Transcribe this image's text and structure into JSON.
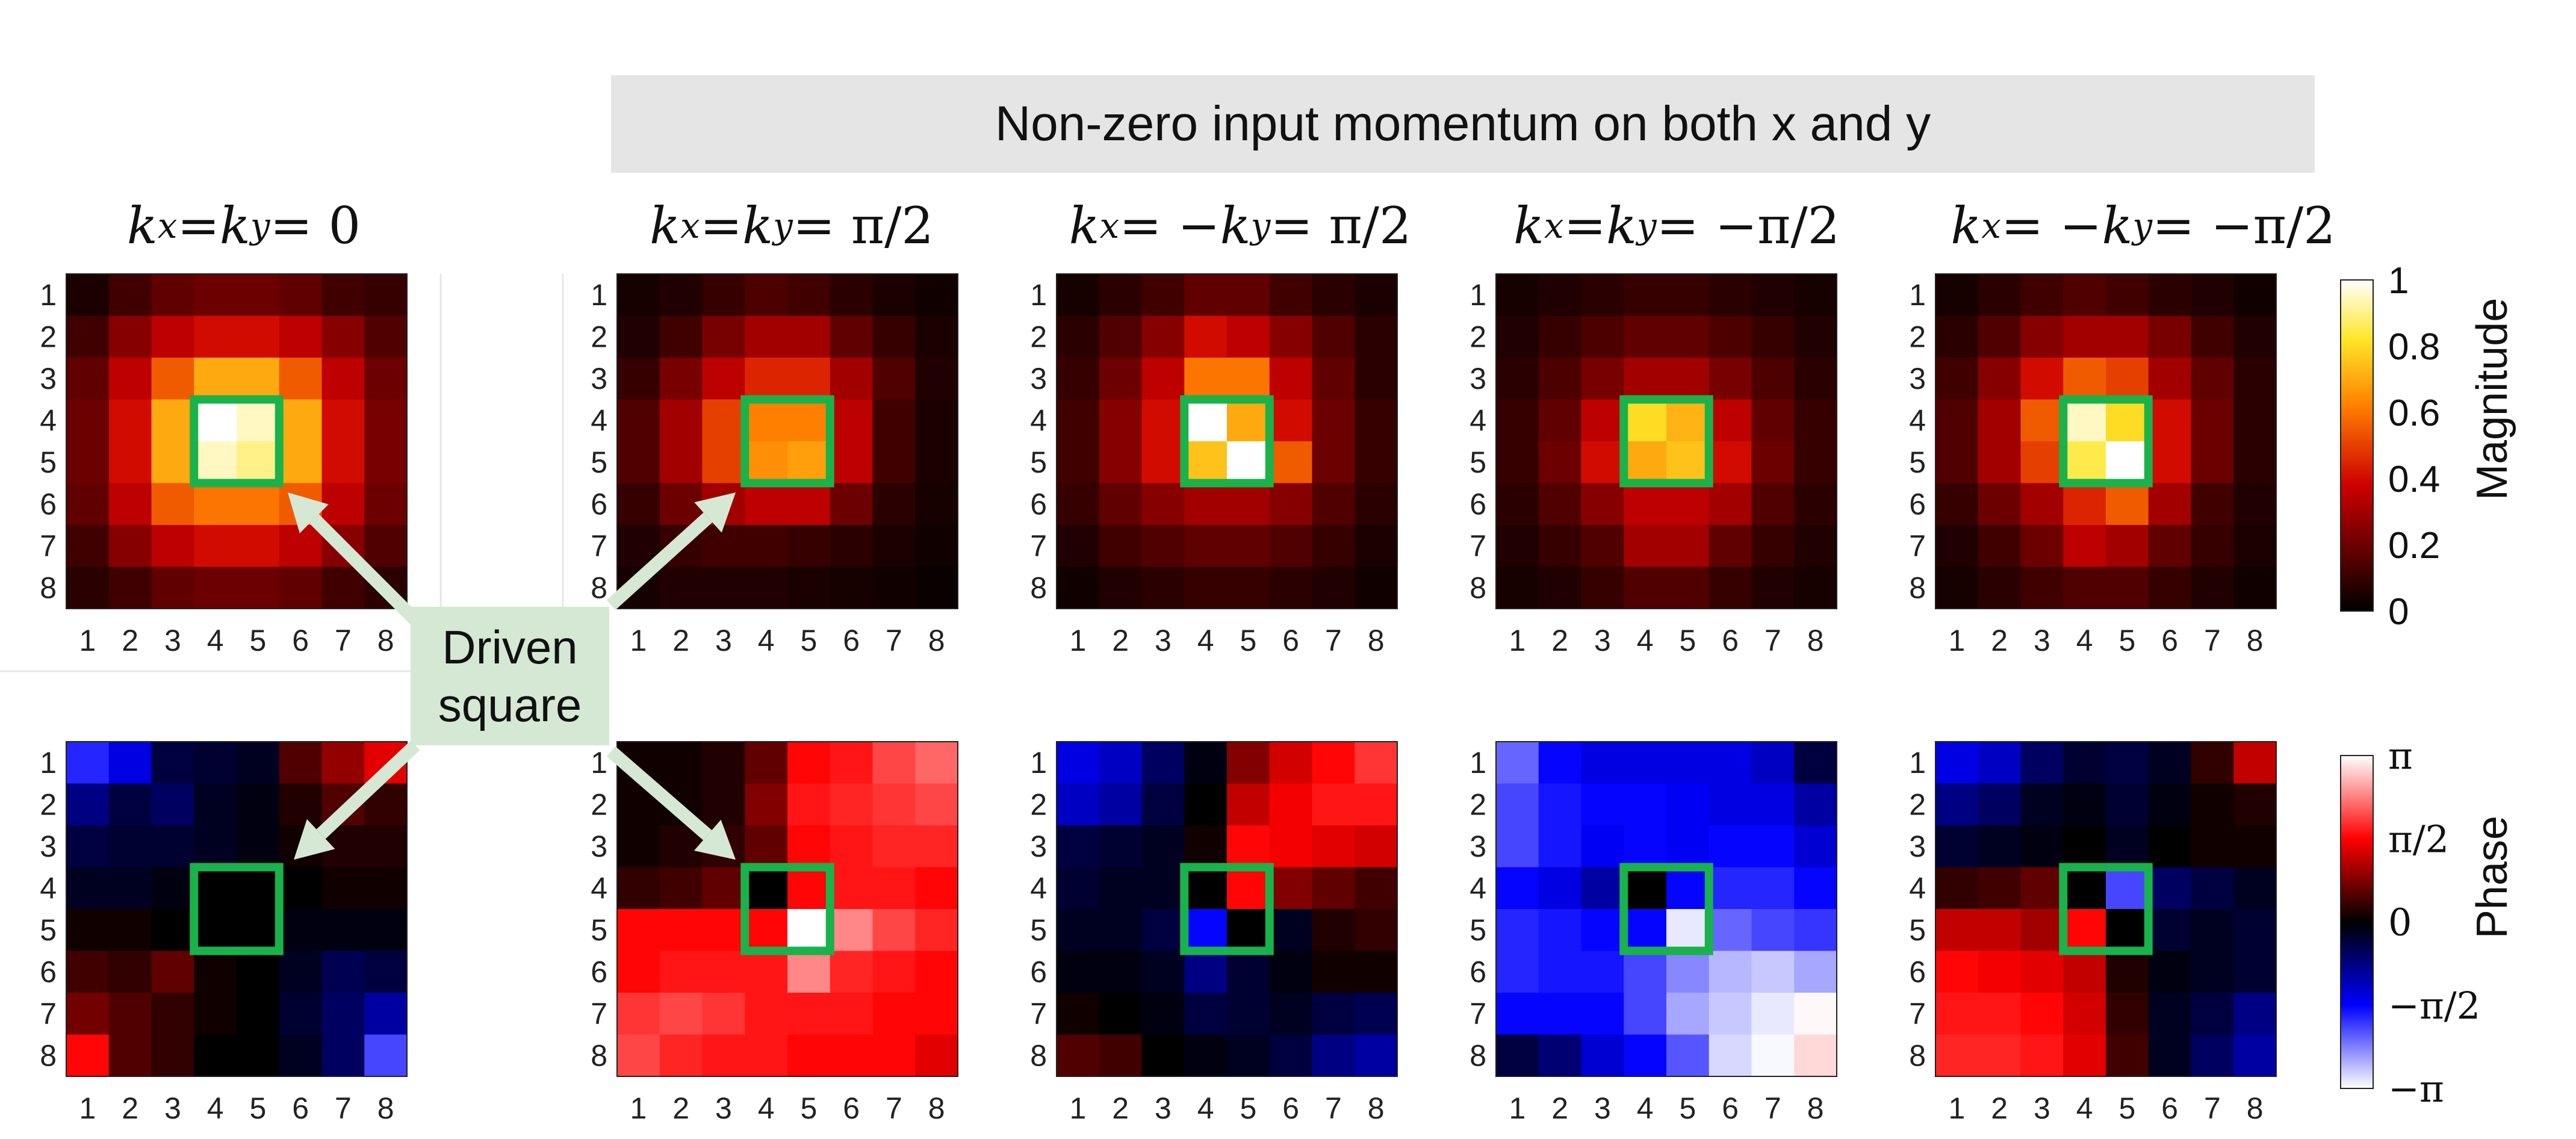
{
  "banner": {
    "text": "Non-zero input momentum on both x and y"
  },
  "callout": {
    "line1": "Driven",
    "line2": "square"
  },
  "titles": [
    {
      "lhs": "k",
      "sub1": "x",
      "op1": " = ",
      "mid": "k",
      "sub2": "y",
      "rhs": " = 0"
    },
    {
      "lhs": "k",
      "sub1": "x",
      "op1": " = ",
      "mid": "k",
      "sub2": "y",
      "rhs": " = π/2"
    },
    {
      "lhs": "k",
      "sub1": "x",
      "op1": " = −",
      "mid": "k",
      "sub2": "y",
      "rhs": " = π/2"
    },
    {
      "lhs": "k",
      "sub1": "x",
      "op1": " = ",
      "mid": "k",
      "sub2": "y",
      "rhs": " = −π/2"
    },
    {
      "lhs": "k",
      "sub1": "x",
      "op1": " = −",
      "mid": "k",
      "sub2": "y",
      "rhs": " = −π/2"
    }
  ],
  "colorbars": {
    "magnitude": {
      "label": "Magnitude",
      "ticks": [
        "0",
        "0.2",
        "0.4",
        "0.6",
        "0.8",
        "1"
      ]
    },
    "phase": {
      "label": "Phase",
      "ticks": [
        "−π",
        "−π/2",
        "0",
        "π/2",
        "π"
      ]
    }
  },
  "chart_data": {
    "type": "heatmap",
    "x_ticks": [
      "1",
      "2",
      "3",
      "4",
      "5",
      "6",
      "7",
      "8"
    ],
    "y_ticks": [
      "1",
      "2",
      "3",
      "4",
      "5",
      "6",
      "7",
      "8"
    ],
    "driven_square": {
      "rows": [
        4,
        5
      ],
      "cols": [
        4,
        5
      ]
    },
    "magnitude_range": [
      0,
      1
    ],
    "phase_range": [
      -3.1416,
      3.1416
    ],
    "panels": [
      {
        "title_index": 0,
        "magnitude": [
          [
            0.05,
            0.12,
            0.18,
            0.2,
            0.2,
            0.18,
            0.12,
            0.1
          ],
          [
            0.12,
            0.25,
            0.35,
            0.4,
            0.4,
            0.35,
            0.25,
            0.15
          ],
          [
            0.18,
            0.35,
            0.55,
            0.7,
            0.7,
            0.55,
            0.35,
            0.2
          ],
          [
            0.2,
            0.4,
            0.7,
            1.0,
            0.95,
            0.7,
            0.4,
            0.22
          ],
          [
            0.2,
            0.4,
            0.7,
            0.95,
            0.9,
            0.7,
            0.4,
            0.22
          ],
          [
            0.18,
            0.35,
            0.55,
            0.6,
            0.6,
            0.55,
            0.35,
            0.2
          ],
          [
            0.12,
            0.25,
            0.35,
            0.4,
            0.4,
            0.35,
            0.25,
            0.15
          ],
          [
            0.08,
            0.12,
            0.18,
            0.2,
            0.2,
            0.18,
            0.12,
            0.08
          ]
        ],
        "phase": [
          [
            -1.8,
            -1.4,
            -0.4,
            -0.3,
            -0.2,
            0.5,
            0.9,
            1.4
          ],
          [
            -0.8,
            -0.4,
            -0.6,
            -0.2,
            -0.1,
            0.2,
            0.5,
            0.3
          ],
          [
            -0.4,
            -0.3,
            -0.3,
            -0.2,
            -0.1,
            0.1,
            0.2,
            0.2
          ],
          [
            -0.2,
            -0.2,
            -0.1,
            0.0,
            0.0,
            0.0,
            0.1,
            0.1
          ],
          [
            0.1,
            0.1,
            0.0,
            0.0,
            0.0,
            -0.1,
            -0.1,
            -0.1
          ],
          [
            0.4,
            0.3,
            0.6,
            0.1,
            0.0,
            -0.2,
            -0.5,
            -0.4
          ],
          [
            0.7,
            0.5,
            0.3,
            0.1,
            0.0,
            -0.3,
            -0.6,
            -1.0
          ],
          [
            1.6,
            0.5,
            0.3,
            0.0,
            0.0,
            -0.2,
            -0.6,
            -2.0
          ]
        ]
      },
      {
        "title_index": 1,
        "magnitude": [
          [
            0.04,
            0.06,
            0.1,
            0.14,
            0.12,
            0.08,
            0.05,
            0.03
          ],
          [
            0.06,
            0.12,
            0.22,
            0.3,
            0.3,
            0.18,
            0.1,
            0.05
          ],
          [
            0.1,
            0.22,
            0.35,
            0.45,
            0.45,
            0.3,
            0.15,
            0.06
          ],
          [
            0.15,
            0.3,
            0.5,
            0.62,
            0.62,
            0.35,
            0.12,
            0.05
          ],
          [
            0.15,
            0.3,
            0.5,
            0.65,
            0.68,
            0.35,
            0.12,
            0.05
          ],
          [
            0.1,
            0.2,
            0.3,
            0.35,
            0.35,
            0.2,
            0.08,
            0.04
          ],
          [
            0.06,
            0.1,
            0.12,
            0.12,
            0.1,
            0.08,
            0.05,
            0.03
          ],
          [
            0.04,
            0.06,
            0.06,
            0.06,
            0.05,
            0.04,
            0.03,
            0.02
          ]
        ],
        "phase": [
          [
            0.1,
            0.1,
            0.2,
            0.6,
            1.6,
            1.7,
            2.0,
            2.2
          ],
          [
            0.1,
            0.1,
            0.2,
            0.8,
            1.7,
            1.8,
            1.9,
            2.0
          ],
          [
            0.1,
            0.2,
            0.3,
            0.6,
            1.6,
            1.7,
            1.8,
            1.8
          ],
          [
            0.3,
            0.4,
            0.6,
            0.0,
            1.6,
            1.7,
            1.7,
            1.6
          ],
          [
            1.6,
            1.6,
            1.6,
            1.6,
            3.14,
            2.4,
            2.0,
            1.8
          ],
          [
            1.6,
            1.7,
            1.7,
            1.7,
            2.4,
            1.8,
            1.7,
            1.6
          ],
          [
            1.9,
            2.0,
            1.9,
            1.7,
            1.7,
            1.7,
            1.6,
            1.6
          ],
          [
            2.0,
            1.8,
            1.7,
            1.7,
            1.6,
            1.6,
            1.6,
            1.4
          ]
        ]
      },
      {
        "title_index": 2,
        "magnitude": [
          [
            0.04,
            0.08,
            0.12,
            0.18,
            0.18,
            0.12,
            0.08,
            0.05
          ],
          [
            0.08,
            0.15,
            0.25,
            0.4,
            0.35,
            0.25,
            0.15,
            0.08
          ],
          [
            0.1,
            0.2,
            0.35,
            0.6,
            0.6,
            0.35,
            0.18,
            0.08
          ],
          [
            0.12,
            0.25,
            0.4,
            1.0,
            0.7,
            0.4,
            0.2,
            0.1
          ],
          [
            0.12,
            0.25,
            0.4,
            0.75,
            1.0,
            0.55,
            0.2,
            0.1
          ],
          [
            0.1,
            0.18,
            0.25,
            0.3,
            0.3,
            0.25,
            0.15,
            0.08
          ],
          [
            0.06,
            0.12,
            0.15,
            0.18,
            0.18,
            0.15,
            0.1,
            0.05
          ],
          [
            0.03,
            0.06,
            0.08,
            0.1,
            0.1,
            0.08,
            0.06,
            0.03
          ]
        ],
        "phase": [
          [
            -1.4,
            -1.2,
            -0.6,
            -0.1,
            0.8,
            1.3,
            1.6,
            1.9
          ],
          [
            -1.2,
            -1.0,
            -0.4,
            0.0,
            1.2,
            1.5,
            1.7,
            1.7
          ],
          [
            -0.4,
            -0.3,
            -0.2,
            0.1,
            1.6,
            1.5,
            1.4,
            1.3
          ],
          [
            -0.3,
            -0.2,
            -0.2,
            0.0,
            1.6,
            0.8,
            0.6,
            0.4
          ],
          [
            -0.2,
            -0.2,
            -0.4,
            -1.6,
            0.0,
            -0.2,
            0.2,
            0.3
          ],
          [
            -0.1,
            -0.1,
            -0.2,
            -0.8,
            -0.3,
            -0.1,
            0.1,
            0.1
          ],
          [
            0.1,
            0.0,
            -0.1,
            -0.4,
            -0.3,
            -0.2,
            -0.4,
            -0.5
          ],
          [
            0.5,
            0.4,
            0.0,
            -0.1,
            -0.2,
            -0.4,
            -0.8,
            -1.0
          ]
        ]
      },
      {
        "title_index": 3,
        "magnitude": [
          [
            0.04,
            0.06,
            0.08,
            0.1,
            0.1,
            0.08,
            0.06,
            0.04
          ],
          [
            0.06,
            0.1,
            0.14,
            0.18,
            0.18,
            0.14,
            0.1,
            0.06
          ],
          [
            0.08,
            0.14,
            0.22,
            0.3,
            0.3,
            0.22,
            0.14,
            0.08
          ],
          [
            0.1,
            0.18,
            0.35,
            0.8,
            0.72,
            0.35,
            0.18,
            0.1
          ],
          [
            0.1,
            0.2,
            0.4,
            0.7,
            0.75,
            0.4,
            0.2,
            0.1
          ],
          [
            0.08,
            0.15,
            0.25,
            0.35,
            0.35,
            0.3,
            0.15,
            0.08
          ],
          [
            0.06,
            0.1,
            0.15,
            0.3,
            0.3,
            0.18,
            0.1,
            0.06
          ],
          [
            0.04,
            0.06,
            0.1,
            0.15,
            0.15,
            0.1,
            0.06,
            0.04
          ]
        ],
        "phase": [
          [
            -2.2,
            -1.6,
            -1.4,
            -1.4,
            -1.4,
            -1.4,
            -1.2,
            -0.4
          ],
          [
            -2.0,
            -1.7,
            -1.6,
            -1.6,
            -1.5,
            -1.4,
            -1.4,
            -1.0
          ],
          [
            -2.0,
            -1.7,
            -1.5,
            -1.6,
            -1.5,
            -1.6,
            -1.6,
            -1.3
          ],
          [
            -1.6,
            -1.4,
            -1.0,
            0.0,
            -1.6,
            -1.8,
            -1.8,
            -1.6
          ],
          [
            -1.8,
            -1.7,
            -1.6,
            -1.6,
            -3.0,
            -2.2,
            -2.0,
            -1.9
          ],
          [
            -1.8,
            -1.7,
            -1.7,
            -2.0,
            -2.4,
            -2.7,
            -2.8,
            -2.6
          ],
          [
            -1.6,
            -1.6,
            -1.6,
            -2.0,
            -2.6,
            -2.8,
            -3.0,
            3.1
          ],
          [
            -0.4,
            -0.7,
            -1.3,
            -1.6,
            -2.1,
            -2.9,
            -3.1,
            2.9
          ]
        ]
      },
      {
        "title_index": 4,
        "magnitude": [
          [
            0.04,
            0.08,
            0.12,
            0.15,
            0.12,
            0.08,
            0.06,
            0.03
          ],
          [
            0.08,
            0.15,
            0.25,
            0.3,
            0.3,
            0.22,
            0.12,
            0.06
          ],
          [
            0.12,
            0.25,
            0.4,
            0.55,
            0.5,
            0.3,
            0.18,
            0.08
          ],
          [
            0.15,
            0.3,
            0.55,
            0.95,
            0.8,
            0.4,
            0.2,
            0.08
          ],
          [
            0.15,
            0.3,
            0.5,
            0.85,
            1.0,
            0.4,
            0.2,
            0.08
          ],
          [
            0.1,
            0.2,
            0.3,
            0.45,
            0.55,
            0.3,
            0.12,
            0.06
          ],
          [
            0.06,
            0.12,
            0.2,
            0.35,
            0.3,
            0.18,
            0.1,
            0.05
          ],
          [
            0.04,
            0.08,
            0.12,
            0.15,
            0.15,
            0.1,
            0.06,
            0.03
          ]
        ],
        "phase": [
          [
            -1.4,
            -1.2,
            -0.6,
            -0.3,
            -0.4,
            -0.2,
            0.3,
            1.2
          ],
          [
            -0.8,
            -0.6,
            -0.2,
            -0.1,
            -0.3,
            -0.1,
            0.1,
            0.2
          ],
          [
            -0.3,
            -0.2,
            -0.1,
            0.0,
            -0.2,
            0.0,
            0.1,
            0.1
          ],
          [
            0.3,
            0.4,
            0.6,
            0.0,
            -2.0,
            -0.6,
            -0.4,
            -0.2
          ],
          [
            1.2,
            1.2,
            1.0,
            1.6,
            0.0,
            -0.3,
            -0.2,
            -0.3
          ],
          [
            1.6,
            1.5,
            1.4,
            1.2,
            0.2,
            -0.1,
            -0.2,
            -0.3
          ],
          [
            1.7,
            1.7,
            1.6,
            1.3,
            0.3,
            -0.2,
            -0.4,
            -0.8
          ],
          [
            1.8,
            1.8,
            1.7,
            1.4,
            0.4,
            -0.2,
            -0.6,
            -1.0
          ]
        ]
      }
    ]
  }
}
